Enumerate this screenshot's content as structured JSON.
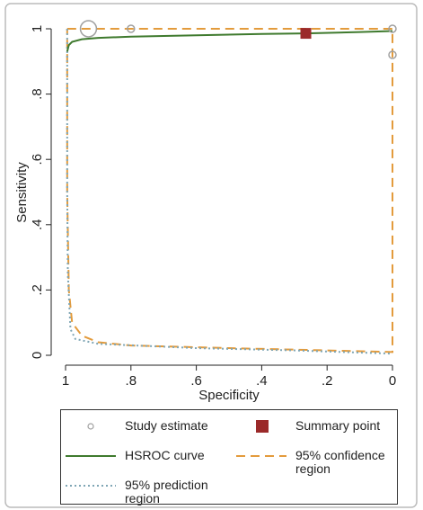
{
  "chart_data": {
    "type": "line",
    "x_label": "Specificity",
    "y_label": "Sensitivity",
    "xlim": [
      1,
      0
    ],
    "ylim": [
      0,
      1
    ],
    "xticks": [
      1,
      {
        "value": 0.8,
        "label": ".8"
      },
      {
        "value": 0.6,
        "label": ".6"
      },
      {
        "value": 0.4,
        "label": ".4"
      },
      {
        "value": 0.2,
        "label": ".2"
      },
      0
    ],
    "yticks": [
      0,
      {
        "value": 0.2,
        "label": ".2"
      },
      {
        "value": 0.4,
        "label": ".4"
      },
      {
        "value": 0.6,
        "label": ".6"
      },
      {
        "value": 0.8,
        "label": ".8"
      },
      1
    ],
    "series": [
      {
        "name": "Study estimate",
        "type": "scatter",
        "marker": "circle",
        "color": "#a0a0a0",
        "x": [
          0.93,
          0.8,
          0,
          0
        ],
        "values": [
          1,
          1,
          1,
          0.92
        ],
        "sizes": [
          5,
          1,
          1,
          1
        ]
      },
      {
        "name": "Summary point",
        "type": "scatter",
        "marker": "square",
        "color": "#9b2a2a",
        "x": [
          0.265
        ],
        "values": [
          0.986
        ]
      },
      {
        "name": "HSROC curve",
        "type": "line",
        "dash": "solid",
        "color": "#3f7a2e",
        "x": [
          0.995,
          0.99,
          0.98,
          0.95,
          0.9,
          0.8,
          0.6,
          0.4,
          0.265,
          0.1,
          0
        ],
        "values": [
          0.93,
          0.95,
          0.96,
          0.968,
          0.972,
          0.976,
          0.98,
          0.984,
          0.986,
          0.99,
          0.993
        ]
      },
      {
        "name": "95% confidence region",
        "type": "line",
        "dash": "dashed",
        "color": "#e39b3c",
        "x": [
          0.995,
          0.5,
          0,
          0,
          0,
          0.2,
          0.5,
          0.8,
          0.9,
          0.95,
          0.98,
          0.99,
          0.995,
          0.995
        ],
        "values": [
          1,
          1,
          1,
          0.5,
          0.01,
          0.015,
          0.022,
          0.03,
          0.04,
          0.06,
          0.1,
          0.2,
          0.5,
          1
        ]
      },
      {
        "name": "95% prediction region",
        "type": "line",
        "dash": "dotted",
        "color": "#7fa6b5",
        "x": [
          0.995,
          0.995,
          0.993,
          0.985,
          0.97,
          0.9,
          0.6,
          0.3,
          0
        ],
        "values": [
          1,
          0.5,
          0.25,
          0.08,
          0.05,
          0.035,
          0.022,
          0.015,
          0.005
        ]
      }
    ]
  }
}
